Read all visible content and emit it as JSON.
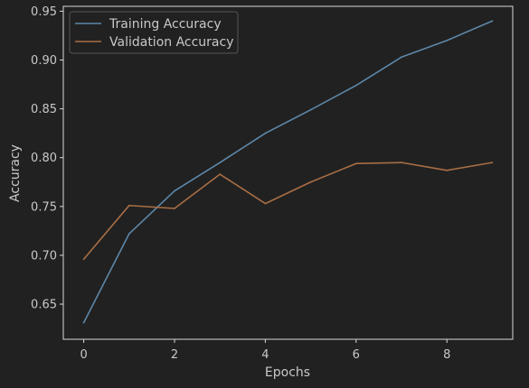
{
  "colors": {
    "background": "#212121",
    "axes": "#d9d9d9",
    "text": "#c8c8c8",
    "training": "#5d87a8",
    "validation": "#a96e45"
  },
  "chart_data": {
    "type": "line",
    "title": "",
    "xlabel": "Epochs",
    "ylabel": "Accuracy",
    "xlim": [
      -0.45,
      9.45
    ],
    "ylim": [
      0.614,
      0.955
    ],
    "xticks": [
      0,
      2,
      4,
      6,
      8
    ],
    "yticks": [
      0.65,
      0.7,
      0.75,
      0.8,
      0.85,
      0.9,
      0.95
    ],
    "grid": false,
    "legend_position": "top-left",
    "x": [
      0,
      1,
      2,
      3,
      4,
      5,
      6,
      7,
      8,
      9
    ],
    "series": [
      {
        "name": "Training Accuracy",
        "color": "#5d87a8",
        "values": [
          0.631,
          0.722,
          0.766,
          0.795,
          0.825,
          0.849,
          0.874,
          0.903,
          0.92,
          0.94
        ]
      },
      {
        "name": "Validation Accuracy",
        "color": "#a96e45",
        "values": [
          0.696,
          0.751,
          0.748,
          0.783,
          0.753,
          0.775,
          0.794,
          0.795,
          0.787,
          0.795
        ]
      }
    ]
  }
}
